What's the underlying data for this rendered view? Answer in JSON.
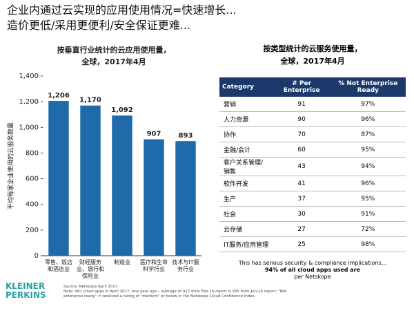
{
  "header": {
    "line1": "企业内通过云实现的应用使用情况=快速增长...",
    "line2": "造价更低/采用更便利/安全保证更难..."
  },
  "chart_data": {
    "type": "bar",
    "title": "按垂直行业统计的云应用使用量，",
    "subtitle": "全球，2017年4月",
    "y_label": "平均每家企业使用的云服务数量",
    "categories": [
      "零售、饭店和酒店业",
      "财经服务业、银行和保险业",
      "制造业",
      "医疗和生命科学行业",
      "技术与IT服务行业"
    ],
    "values": [
      1206,
      1170,
      1092,
      907,
      893
    ],
    "value_labels": [
      "1,206",
      "1,170",
      "1,092",
      "907",
      "893"
    ],
    "color": "#1f6aa8",
    "ylim": [
      0,
      1400
    ],
    "yticks": [
      0,
      200,
      400,
      600,
      800,
      {
        "value": 1000,
        "label": "1,000"
      },
      {
        "value": 1200,
        "label": "1,200"
      },
      {
        "value": 1400,
        "label": "1,400"
      }
    ],
    "grid": false
  },
  "table": {
    "title": "按类型统计的云服务使用量，",
    "subtitle": "全球，2017年4月",
    "header": [
      "Category",
      "# Per Enterprise",
      "% Not Enterprise Ready"
    ],
    "rows": [
      [
        "营销",
        "91",
        "97%"
      ],
      [
        "人力资源",
        "90",
        "96%"
      ],
      [
        "协作",
        "70",
        "87%"
      ],
      [
        "金融/会计",
        "60",
        "95%"
      ],
      [
        "客户关系管理/销售",
        "43",
        "94%"
      ],
      [
        "软件开发",
        "41",
        "96%"
      ],
      [
        "生产",
        "37",
        "95%"
      ],
      [
        "社会",
        "30",
        "91%"
      ],
      [
        "云存储",
        "27",
        "72%"
      ],
      [
        "IT服务/应用管理",
        "25",
        "98%"
      ]
    ]
  },
  "callout": {
    "line1": "This has serious security & compliance implications...",
    "line2": "94% of all cloud apps used are",
    "line3": "per Netskope"
  },
  "footer": {
    "logo1": "KLEINER",
    "logo2": "PERKINS",
    "source": "Source: Netskope April 2017",
    "note": "Note: 461 cloud apps in April 2017, one year ago – average of 917 from Feb-16 report & 935 from Jun-16 report; \"Not enterprise ready\" = received a rating of \"medium\" or below in the Netskope Cloud Confidence Index."
  }
}
